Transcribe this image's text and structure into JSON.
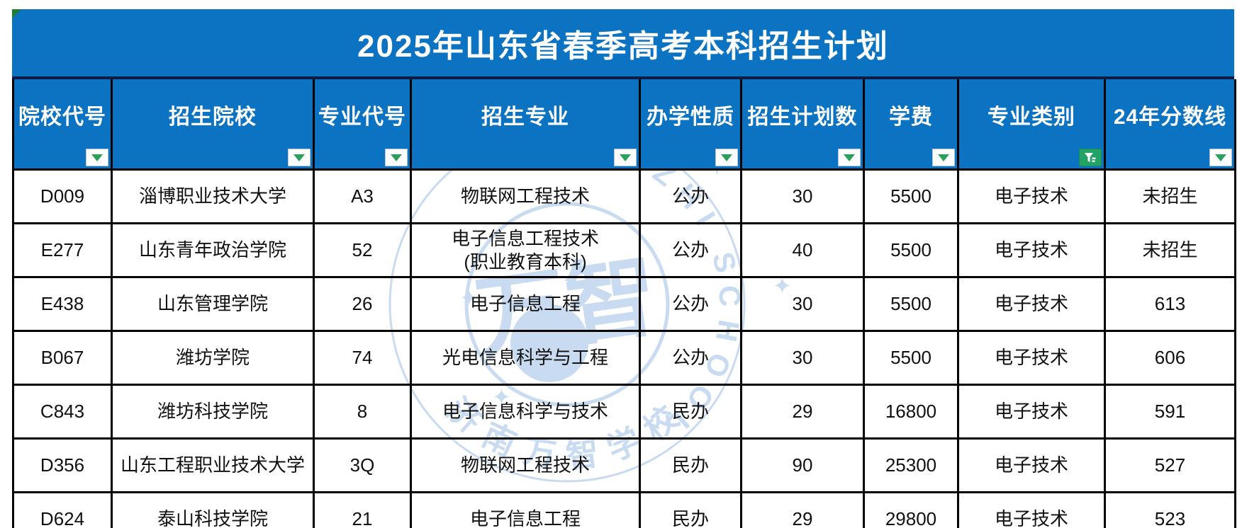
{
  "title_bar": {
    "title": "2025年山东省春季高考本科招生计划"
  },
  "colors": {
    "primary_blue": "#0b73c1",
    "divider_navy": "#0d1b45",
    "grid_black": "#000000",
    "active_filter_green": "#21a366",
    "dropdown_arrow_green": "#2aa05a",
    "watermark_blue": "#c9dbf0"
  },
  "icons": {
    "dropdown": "chevron-down-triangle",
    "active_filter": "funnel-with-lines",
    "corner_marker": "green-corner-triangle"
  },
  "table": {
    "columns": [
      {
        "key": "college_code",
        "label": "院校代号",
        "filter": "dropdown"
      },
      {
        "key": "college_name",
        "label": "招生院校",
        "filter": "dropdown"
      },
      {
        "key": "major_code",
        "label": "专业代号",
        "filter": "dropdown"
      },
      {
        "key": "major_name",
        "label": "招生专业",
        "filter": "dropdown"
      },
      {
        "key": "school_type",
        "label": "办学性质",
        "filter": "dropdown"
      },
      {
        "key": "plan_count",
        "label": "招生计划数",
        "filter": "dropdown"
      },
      {
        "key": "tuition",
        "label": "学费",
        "filter": "dropdown"
      },
      {
        "key": "major_category",
        "label": "专业类别",
        "filter": "active"
      },
      {
        "key": "score_line_2024",
        "label": "24年分数线",
        "filter": "dropdown"
      }
    ],
    "rows": [
      [
        "D009",
        "淄博职业技术大学",
        "A3",
        "物联网工程技术",
        "公办",
        "30",
        "5500",
        "电子技术",
        "未招生"
      ],
      [
        "E277",
        "山东青年政治学院",
        "52",
        "电子信息工程技术\n(职业教育本科)",
        "公办",
        "40",
        "5500",
        "电子技术",
        "未招生"
      ],
      [
        "E438",
        "山东管理学院",
        "26",
        "电子信息工程",
        "公办",
        "30",
        "5500",
        "电子技术",
        "613"
      ],
      [
        "B067",
        "潍坊学院",
        "74",
        "光电信息科学与工程",
        "公办",
        "30",
        "5500",
        "电子技术",
        "606"
      ],
      [
        "C843",
        "潍坊科技学院",
        "8",
        "电子信息科学与技术",
        "民办",
        "29",
        "16800",
        "电子技术",
        "591"
      ],
      [
        "D356",
        "山东工程职业技术大学",
        "3Q",
        "物联网工程技术",
        "民办",
        "90",
        "25300",
        "电子技术",
        "527"
      ],
      [
        "D624",
        "泰山科技学院",
        "21",
        "电子信息工程",
        "民办",
        "29",
        "29800",
        "电子技术",
        "523"
      ]
    ]
  },
  "watermark": {
    "arc_text_top": "WAN ZHI SCHOOL",
    "arc_text_bottom": "济南万智学校",
    "center_text": "万智",
    "star": "✦"
  }
}
